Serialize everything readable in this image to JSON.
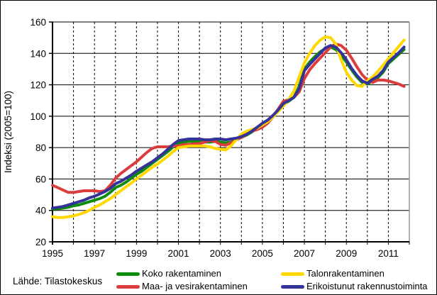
{
  "figure": {
    "source_label": "Lähde: Tilastokeskus"
  },
  "chart_data": {
    "type": "line",
    "title": "",
    "xlabel": "",
    "ylabel": "Indeksi (2005=100)",
    "xlim": [
      1995,
      2012
    ],
    "ylim": [
      20,
      160
    ],
    "y_ticks": [
      20,
      40,
      60,
      80,
      100,
      120,
      140,
      160
    ],
    "x_tick_years": [
      1995,
      1997,
      1999,
      2001,
      2003,
      2005,
      2007,
      2009,
      2011
    ],
    "grid": {
      "horizontal": "solid",
      "vertical": "dashed-yearly"
    },
    "legend_position": "bottom",
    "legend_columns": 2,
    "x_start": 1995.0,
    "x_step": 0.25,
    "series": [
      {
        "name": "Koko rakentaminen",
        "color": "#0e8c0e",
        "values": [
          41,
          41,
          41.5,
          42,
          43,
          43.5,
          44.5,
          45.5,
          46.5,
          47.5,
          49,
          51.5,
          54.5,
          56,
          58,
          60.5,
          63,
          65,
          67.5,
          70,
          72.5,
          75,
          77.5,
          80.5,
          83,
          83.5,
          84,
          84,
          84,
          83.5,
          83.5,
          84,
          83.5,
          83,
          83.5,
          85,
          86.5,
          88,
          90,
          92.5,
          95,
          97,
          100,
          103.5,
          107.5,
          109.5,
          112,
          119,
          130,
          134.5,
          138,
          141,
          143,
          144,
          142.5,
          139,
          134.5,
          129.5,
          125,
          121.5,
          120.5,
          122.5,
          124.5,
          128,
          133.5,
          136.5,
          139.5,
          142.5
        ]
      },
      {
        "name": "Maa- ja vesirakentaminen",
        "color": "#dd3c3c",
        "values": [
          56,
          54.5,
          53,
          51.5,
          51.5,
          52,
          52.5,
          52.5,
          52.5,
          52,
          52.5,
          56,
          60.5,
          63.5,
          66,
          68.5,
          71,
          74,
          77,
          79.5,
          80.5,
          80.5,
          80.5,
          81,
          81,
          82,
          82,
          82.5,
          82.5,
          83.5,
          84.5,
          84,
          82,
          81.5,
          83,
          85,
          86.5,
          88.5,
          90.5,
          91.5,
          93,
          95.5,
          99.5,
          104.5,
          109.5,
          110.5,
          112,
          115.5,
          124,
          129.5,
          133.5,
          137,
          140.5,
          144,
          146,
          145,
          142,
          137,
          131.5,
          126.5,
          123,
          121.5,
          123,
          123,
          122.5,
          121.5,
          120.5,
          119
        ]
      },
      {
        "name": "Talonrakentaminen",
        "color": "#ffd800",
        "values": [
          36,
          35.5,
          35.5,
          36,
          36.5,
          37.5,
          38.5,
          40,
          42,
          43.5,
          45.5,
          47.5,
          50,
          52.5,
          55,
          57.5,
          60,
          62.5,
          65,
          67.5,
          69.5,
          72,
          74.5,
          77.5,
          80,
          80.5,
          81,
          81,
          81,
          81,
          80.5,
          79.5,
          79,
          78.5,
          81,
          85,
          88.5,
          90.5,
          91.5,
          92.5,
          94.5,
          96.5,
          99.5,
          103,
          106.5,
          110.5,
          116,
          125,
          134,
          140,
          145,
          148.5,
          150.5,
          150,
          146,
          136,
          128,
          123,
          119.5,
          119,
          122.5,
          125,
          128.5,
          132.5,
          136.5,
          140.5,
          144.5,
          148.5
        ]
      },
      {
        "name": "Erikoistunut rakennustoiminta",
        "color": "#333399",
        "values": [
          41.5,
          42,
          42.5,
          43.5,
          44.5,
          45.5,
          46.5,
          48,
          49,
          50.5,
          52,
          54,
          57,
          58.5,
          60.5,
          62.5,
          65,
          67,
          69,
          71,
          73.5,
          76,
          79,
          82,
          84.5,
          85,
          85.5,
          85.5,
          85.5,
          85,
          85,
          85.5,
          85.5,
          85,
          85.5,
          86,
          87,
          88.5,
          90.5,
          93,
          95.5,
          97.5,
          100.5,
          104,
          108,
          110,
          112,
          117.5,
          129,
          133,
          136.5,
          140,
          143.5,
          145,
          144,
          140.5,
          136,
          130.5,
          126,
          122.5,
          121,
          123.5,
          125.5,
          129,
          134.5,
          137.5,
          140.5,
          144
        ]
      }
    ]
  }
}
